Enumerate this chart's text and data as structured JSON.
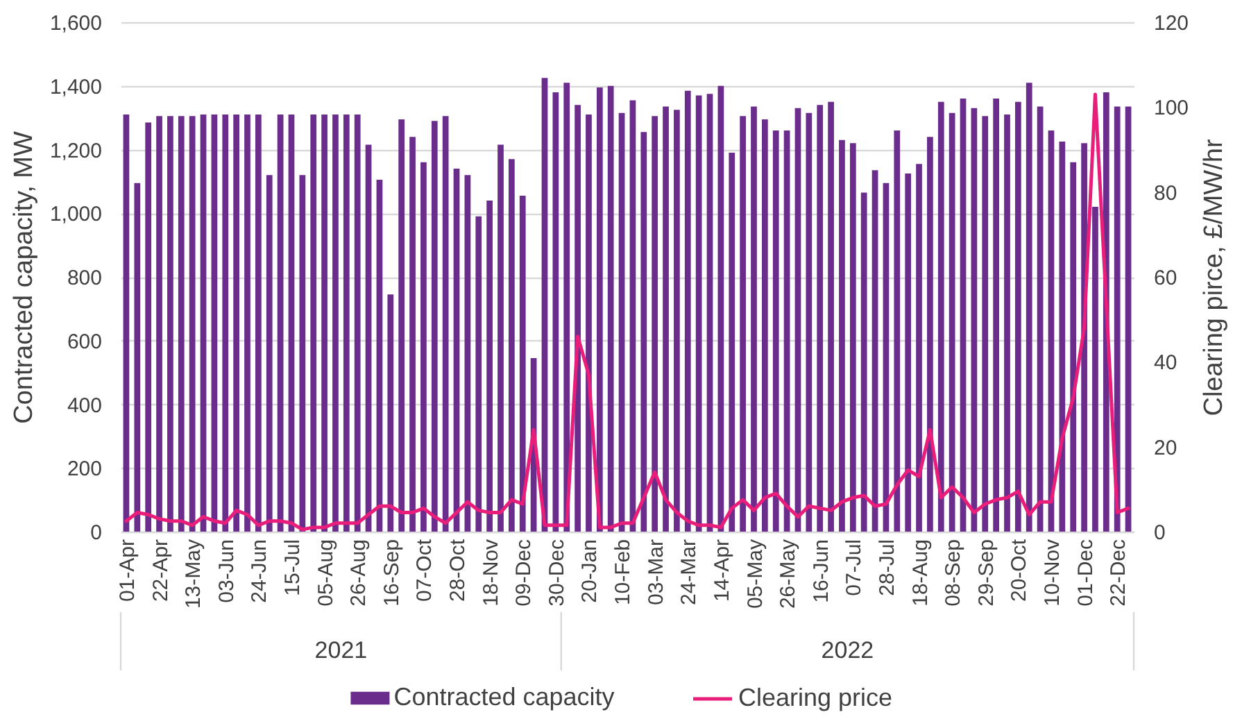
{
  "chart_data": {
    "type": "bar",
    "ylabel": "Contracted capacity, MW",
    "y2label": "Clearing pirce, £/MW/hr",
    "x": [
      "2021-04-01",
      "2021-04-08",
      "2021-04-15",
      "2021-04-22",
      "2021-04-29",
      "2021-05-06",
      "2021-05-13",
      "2021-05-20",
      "2021-05-27",
      "2021-06-03",
      "2021-06-10",
      "2021-06-17",
      "2021-06-24",
      "2021-07-01",
      "2021-07-08",
      "2021-07-15",
      "2021-07-22",
      "2021-07-29",
      "2021-08-05",
      "2021-08-12",
      "2021-08-19",
      "2021-08-26",
      "2021-09-02",
      "2021-09-09",
      "2021-09-16",
      "2021-09-23",
      "2021-09-30",
      "2021-10-07",
      "2021-10-14",
      "2021-10-21",
      "2021-10-28",
      "2021-11-04",
      "2021-11-11",
      "2021-11-18",
      "2021-11-25",
      "2021-12-02",
      "2021-12-09",
      "2021-12-16",
      "2021-12-23",
      "2021-12-30",
      "2022-01-06",
      "2022-01-13",
      "2022-01-20",
      "2022-01-27",
      "2022-02-03",
      "2022-02-10",
      "2022-02-17",
      "2022-02-24",
      "2022-03-03",
      "2022-03-10",
      "2022-03-17",
      "2022-03-24",
      "2022-03-31",
      "2022-04-07",
      "2022-04-14",
      "2022-04-21",
      "2022-04-28",
      "2022-05-05",
      "2022-05-12",
      "2022-05-19",
      "2022-05-26",
      "2022-06-02",
      "2022-06-09",
      "2022-06-16",
      "2022-06-23",
      "2022-06-30",
      "2022-07-07",
      "2022-07-14",
      "2022-07-21",
      "2022-07-28",
      "2022-08-04",
      "2022-08-11",
      "2022-08-18",
      "2022-08-25",
      "2022-09-01",
      "2022-09-08",
      "2022-09-15",
      "2022-09-22",
      "2022-09-29",
      "2022-10-06",
      "2022-10-13",
      "2022-10-20",
      "2022-10-27",
      "2022-11-03",
      "2022-11-10",
      "2022-11-17",
      "2022-11-24",
      "2022-12-01",
      "2022-12-08",
      "2022-12-15",
      "2022-12-22",
      "2022-12-29"
    ],
    "xlim": [
      "2021-03-28T12:00",
      "2023-01-01T12:00"
    ],
    "xticks": [
      {
        "value": "2021-04-01",
        "label": "01-Apr"
      },
      {
        "value": "2021-04-22",
        "label": "22-Apr"
      },
      {
        "value": "2021-05-13",
        "label": "13-May"
      },
      {
        "value": "2021-06-03",
        "label": "03-Jun"
      },
      {
        "value": "2021-06-24",
        "label": "24-Jun"
      },
      {
        "value": "2021-07-15",
        "label": "15-Jul"
      },
      {
        "value": "2021-08-05",
        "label": "05-Aug"
      },
      {
        "value": "2021-08-26",
        "label": "26-Aug"
      },
      {
        "value": "2021-09-16",
        "label": "16-Sep"
      },
      {
        "value": "2021-10-07",
        "label": "07-Oct"
      },
      {
        "value": "2021-10-28",
        "label": "28-Oct"
      },
      {
        "value": "2021-11-18",
        "label": "18-Nov"
      },
      {
        "value": "2021-12-09",
        "label": "09-Dec"
      },
      {
        "value": "2021-12-30",
        "label": "30-Dec"
      },
      {
        "value": "2022-01-20",
        "label": "20-Jan"
      },
      {
        "value": "2022-02-10",
        "label": "10-Feb"
      },
      {
        "value": "2022-03-03",
        "label": "03-Mar"
      },
      {
        "value": "2022-03-24",
        "label": "24-Mar"
      },
      {
        "value": "2022-04-14",
        "label": "14-Apr"
      },
      {
        "value": "2022-05-05",
        "label": "05-May"
      },
      {
        "value": "2022-05-26",
        "label": "26-May"
      },
      {
        "value": "2022-06-16",
        "label": "16-Jun"
      },
      {
        "value": "2022-07-07",
        "label": "07-Jul"
      },
      {
        "value": "2022-07-28",
        "label": "28-Jul"
      },
      {
        "value": "2022-08-18",
        "label": "18-Aug"
      },
      {
        "value": "2022-09-08",
        "label": "08-Sep"
      },
      {
        "value": "2022-09-29",
        "label": "29-Sep"
      },
      {
        "value": "2022-10-20",
        "label": "20-Oct"
      },
      {
        "value": "2022-11-10",
        "label": "10-Nov"
      },
      {
        "value": "2022-12-01",
        "label": "01-Dec"
      },
      {
        "value": "2022-12-22",
        "label": "22-Dec"
      }
    ],
    "ylim": [
      0,
      1600
    ],
    "yticks": [
      0,
      200,
      400,
      600,
      800,
      {
        "value": 1000,
        "label": "1,000"
      },
      {
        "value": 1200,
        "label": "1,200"
      },
      {
        "value": 1400,
        "label": "1,400"
      },
      {
        "value": 1600,
        "label": "1,600"
      }
    ],
    "y2lim": [
      0,
      120
    ],
    "y2ticks": [
      0,
      20,
      40,
      60,
      80,
      100,
      120
    ],
    "series": [
      {
        "name": "Contracted capacity",
        "color": "#6b2d8b",
        "values": [
          1310,
          1095,
          1285,
          1305,
          1305,
          1305,
          1305,
          1310,
          1310,
          1310,
          1310,
          1310,
          1310,
          1120,
          1310,
          1310,
          1120,
          1310,
          1310,
          1310,
          1310,
          1310,
          1215,
          1105,
          745,
          1295,
          1240,
          1160,
          1290,
          1305,
          1140,
          1120,
          990,
          1040,
          1215,
          1170,
          1055,
          545,
          1425,
          1380,
          1410,
          1340,
          1310,
          1395,
          1400,
          1315,
          1355,
          1255,
          1305,
          1335,
          1325,
          1385,
          1370,
          1375,
          1400,
          1190,
          1305,
          1335,
          1295,
          1260,
          1260,
          1330,
          1315,
          1340,
          1350,
          1230,
          1220,
          1065,
          1135,
          1095,
          1260,
          1125,
          1155,
          1240,
          1350,
          1315,
          1360,
          1330,
          1305,
          1360,
          1310,
          1350,
          1410,
          1335,
          1260,
          1225,
          1160,
          1220,
          1020,
          1380,
          1335,
          1335
        ]
      },
      {
        "name": "Clearing price",
        "type": "line",
        "axis": "y2",
        "color": "#e91e7b",
        "values": [
          2.5,
          4.5,
          4,
          3,
          2.5,
          2.5,
          1.5,
          3.5,
          2.5,
          2,
          5,
          4,
          1.5,
          2.5,
          2.5,
          2,
          0.5,
          1,
          1,
          2,
          2,
          2,
          4,
          6,
          6,
          4.5,
          4.5,
          5.5,
          3.5,
          2,
          4.5,
          7,
          5,
          4.5,
          4.5,
          7.5,
          6.5,
          24,
          1.5,
          1.5,
          1.5,
          46,
          37,
          1,
          1,
          2,
          2,
          8,
          14,
          7.5,
          4.5,
          2.5,
          1.5,
          1.5,
          1,
          5.5,
          7.5,
          5,
          8,
          9,
          6,
          3.5,
          6,
          5.5,
          5,
          7,
          8,
          8.5,
          6,
          6.5,
          11,
          14.5,
          13,
          24,
          8,
          10.5,
          8,
          4.5,
          6.5,
          7.5,
          8,
          9.5,
          4,
          7,
          7,
          22,
          31.5,
          48,
          103,
          54,
          4.5,
          5.5
        ]
      }
    ],
    "annotations": [
      "2021",
      "2022"
    ],
    "grid": "y",
    "legend": "bottom"
  }
}
